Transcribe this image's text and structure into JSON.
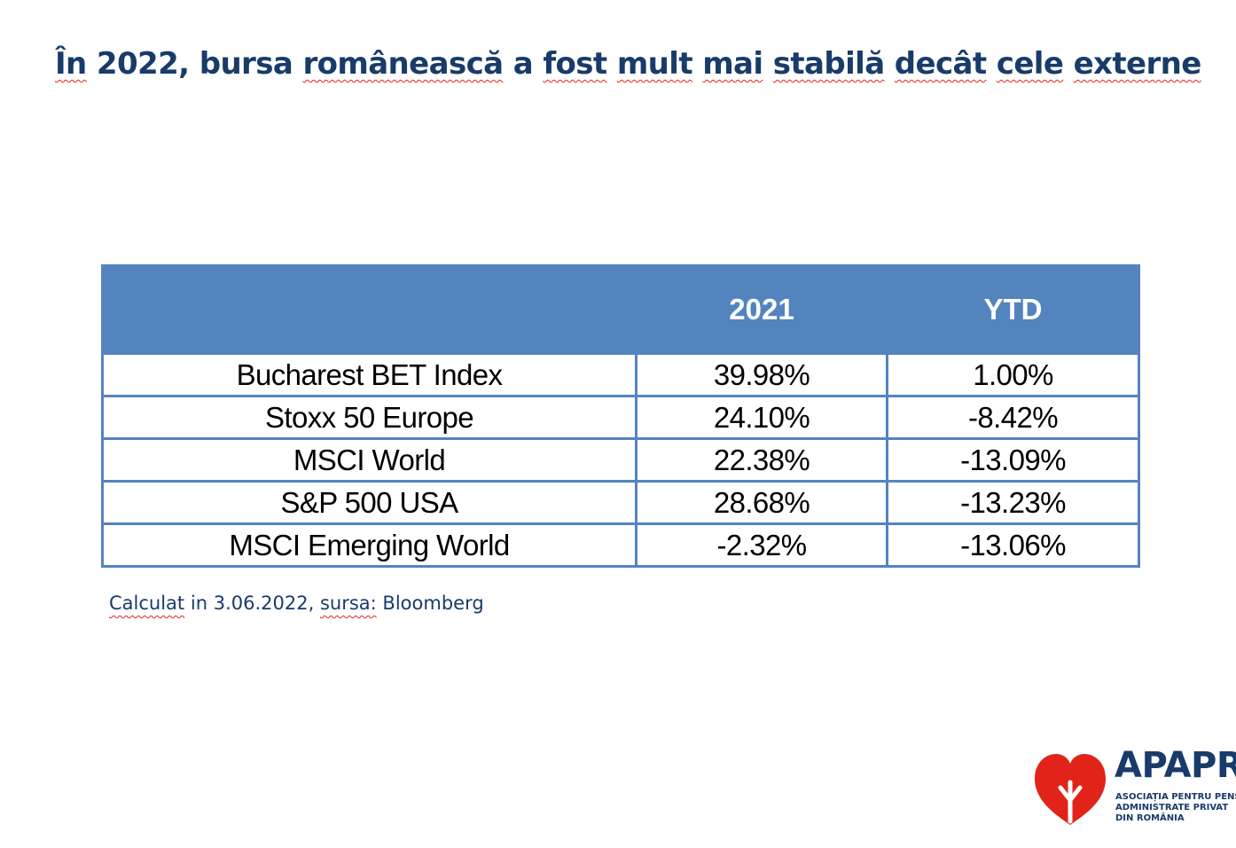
{
  "colors": {
    "title": "#183b6a",
    "header_fill": "#5384be",
    "spell_underline": "#e2231a",
    "logo_red": "#e2231a",
    "logo_navy": "#183b6a"
  },
  "title_words": [
    "În",
    "2022,",
    "bursa",
    "românească",
    "a",
    "fost",
    "mult",
    "mai",
    "stabilă",
    "decât",
    "cele",
    "externe"
  ],
  "title_squiggled": [
    true,
    false,
    false,
    true,
    false,
    true,
    true,
    true,
    true,
    true,
    true,
    true
  ],
  "table": {
    "headers": [
      "",
      "2021",
      "YTD"
    ],
    "rows": [
      [
        "Bucharest BET Index",
        "39.98%",
        "1.00%"
      ],
      [
        "Stoxx 50 Europe",
        "24.10%",
        "-8.42%"
      ],
      [
        "MSCI World",
        "22.38%",
        "-13.09%"
      ],
      [
        "S&P 500 USA",
        "28.68%",
        "-13.23%"
      ],
      [
        "MSCI Emerging World",
        "-2.32%",
        "-13.06%"
      ]
    ]
  },
  "footnote_words": [
    "Calculat",
    "in",
    "3.06.2022,",
    "sursa:",
    "Bloomberg"
  ],
  "footnote_squiggled": [
    true,
    false,
    false,
    true,
    false
  ],
  "logo": {
    "name": "APAPR",
    "tagline": [
      "ASOCIAȚIA PENTRU PENSIILE",
      "ADMINISTRATE PRIVAT",
      "DIN ROMÂNIA"
    ]
  }
}
